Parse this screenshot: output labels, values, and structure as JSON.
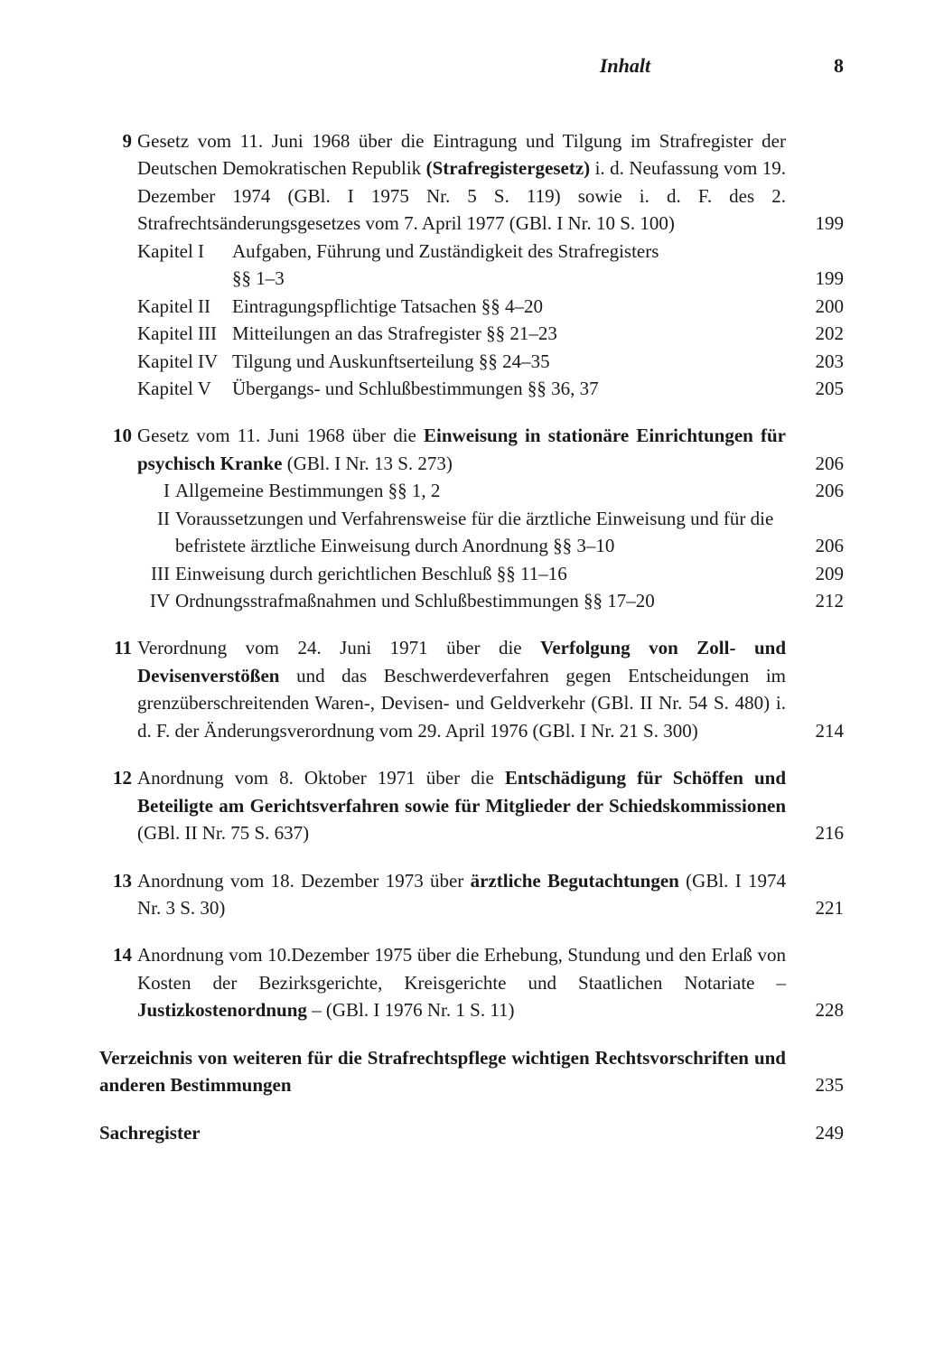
{
  "header": {
    "title": "Inhalt",
    "page": "8"
  },
  "entries": [
    {
      "num": "9",
      "main_parts": [
        "Gesetz vom 11. Juni 1968 über die Eintragung und Tilgung im Straf­register der Deutschen Demokratischen Republik ",
        "(Strafregistergesetz)",
        " i. d. Neufassung vom 19. Dezember 1974 (GBl. I 1975 Nr. 5 S. 119) sowie i. d. F. des 2. Strafrechtsänderungsgesetzes vom 7. April 1977 (GBl. I Nr. 10 S. 100)"
      ],
      "main_page": "199",
      "subs": [
        {
          "label": "Kapitel   I",
          "text": "Aufgaben, Führung und Zuständigkeit des Strafregisters",
          "cont": "§§ 1–3",
          "page": "199"
        },
        {
          "label": "Kapitel  II",
          "text": "Eintragungspflichtige Tatsachen §§ 4–20",
          "page": "200"
        },
        {
          "label": "Kapitel III",
          "text": "Mitteilungen an das Strafregister §§ 21–23",
          "page": "202"
        },
        {
          "label": "Kapitel IV",
          "text": "Tilgung und Auskunftserteilung §§ 24–35",
          "page": "203"
        },
        {
          "label": "Kapitel  V",
          "text": "Übergangs- und Schlußbestimmungen §§ 36, 37",
          "page": "205"
        }
      ]
    },
    {
      "num": "10",
      "main_parts": [
        "Gesetz vom 11. Juni 1968 über die ",
        "Einweisung in stationäre Einrich­tungen für psychisch Kranke",
        " (GBl. I Nr. 13 S. 273)"
      ],
      "main_page": "206",
      "subs": [
        {
          "label": "I",
          "text": "Allgemeine Bestimmungen §§ 1, 2",
          "page": "206"
        },
        {
          "label": "II",
          "text": "Voraussetzungen und Verfahrensweise für die ärztliche Einweisung und für die befristete ärztliche Einweisung durch Anordnung §§ 3–10",
          "page": "206"
        },
        {
          "label": "III",
          "text": "Einweisung durch gerichtlichen Beschluß §§ 11–16",
          "page": "209"
        },
        {
          "label": "IV",
          "text": "Ordnungsstrafmaßnahmen und Schlußbestimmungen §§ 17–20",
          "page": "212"
        }
      ]
    },
    {
      "num": "11",
      "main_parts": [
        "Verordnung vom 24. Juni 1971 über die ",
        "Verfolgung von Zoll- und Devisenverstößen",
        " und das Beschwerdeverfahren gegen Entscheidun­gen im grenzüberschreitenden Waren-, Devisen- und Geldverkehr (GBl. II Nr. 54 S. 480) i. d. F. der Änderungsverordnung vom 29. April 1976 (GBl. I Nr. 21 S. 300)"
      ],
      "main_page": "214"
    },
    {
      "num": "12",
      "main_parts": [
        "Anordnung vom 8. Oktober 1971 über die ",
        "Entschädigung für Schöffen und Beteiligte am Gerichtsverfahren sowie für Mitglieder der Schieds­kommissionen",
        " (GBl. II Nr. 75 S. 637)"
      ],
      "main_page": "216"
    },
    {
      "num": "13",
      "main_parts": [
        "Anordnung vom 18. Dezember 1973 über ",
        "ärztliche Begutachtungen",
        " (GBl. I 1974 Nr. 3 S. 30)"
      ],
      "main_page": "221"
    },
    {
      "num": "14",
      "main_parts": [
        "Anordnung vom 10.Dezember 1975 über die Erhebung, Stundung und den Erlaß von Kosten der Bezirksgerichte, Kreisgerichte und Staat­lichen Notariate – ",
        "Justizkostenordnung",
        " – (GBl. I 1976 Nr. 1 S. 11)"
      ],
      "main_page": "228"
    }
  ],
  "plain": [
    {
      "text": "Verzeichnis von weiteren für die Strafrechtspflege wichtigen Rechtsvor­schriften und anderen Bestimmungen",
      "page": "235"
    },
    {
      "text": "Sachregister",
      "page": "249"
    }
  ]
}
